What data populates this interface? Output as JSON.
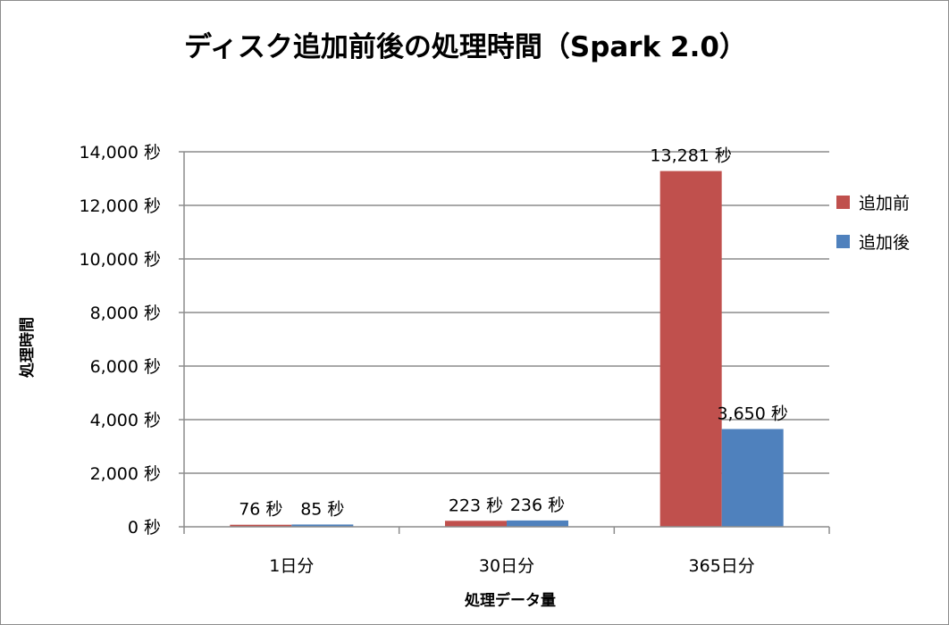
{
  "chart_data": {
    "type": "bar",
    "title": "ディスク追加前後の処理時間（Spark 2.0）",
    "xlabel": "処理データ量",
    "ylabel": "処理時間",
    "categories": [
      "1日分",
      "30日分",
      "365日分"
    ],
    "series": [
      {
        "name": "追加前",
        "color": "#c0504d",
        "values": [
          76,
          223,
          13281
        ],
        "labels": [
          "76 秒",
          "223 秒",
          "13,281 秒"
        ]
      },
      {
        "name": "追加後",
        "color": "#4f81bd",
        "values": [
          85,
          236,
          3650
        ],
        "labels": [
          "85 秒",
          "236 秒",
          "3,650 秒"
        ]
      }
    ],
    "ylim": [
      0,
      14000
    ],
    "yticks": [
      0,
      2000,
      4000,
      6000,
      8000,
      10000,
      12000,
      14000
    ],
    "ytick_labels": [
      "0 秒",
      "2,000 秒",
      "4,000 秒",
      "6,000 秒",
      "8,000 秒",
      "10,000 秒",
      "12,000 秒",
      "14,000 秒"
    ],
    "grid": true,
    "legend_position": "right"
  }
}
